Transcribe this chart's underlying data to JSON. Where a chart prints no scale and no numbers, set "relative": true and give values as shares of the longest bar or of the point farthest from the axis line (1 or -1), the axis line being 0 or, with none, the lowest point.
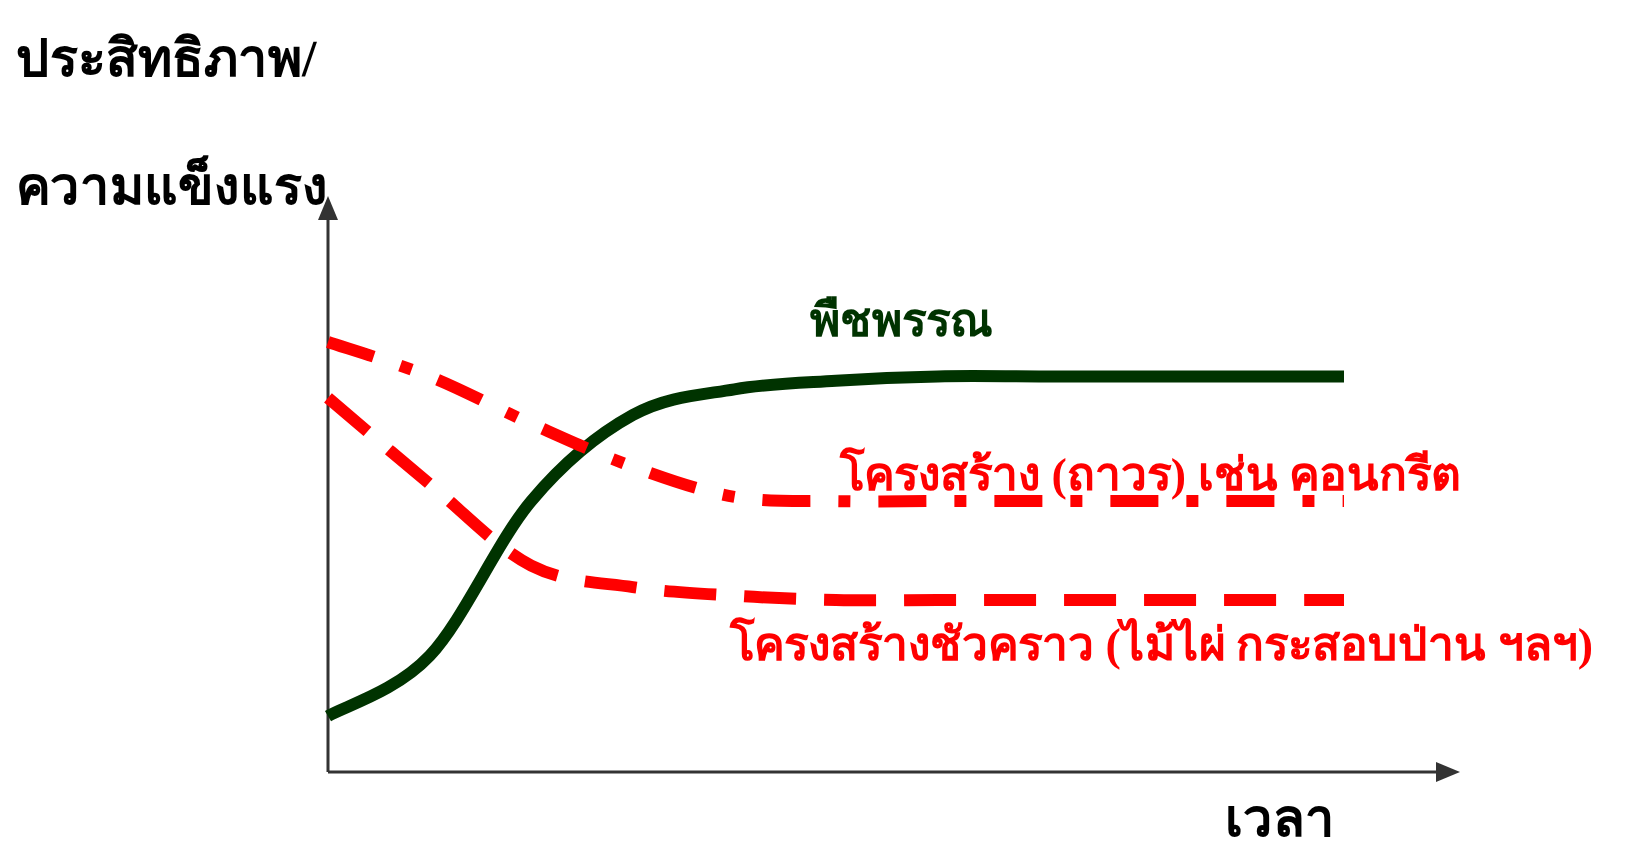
{
  "chart_data": {
    "type": "line",
    "relative": true,
    "xlabel": "เวลา",
    "ylabel": "ประสิทธิภาพ/ความแข็งแรง",
    "marker": "none",
    "categories": [
      null,
      null,
      null,
      null,
      null,
      null,
      null,
      null,
      null,
      null,
      null
    ],
    "series": [
      {
        "name": "พืชพรรณ",
        "color": "#003300",
        "line_style": "solid",
        "values": [
          0.13,
          0.27,
          0.63,
          0.83,
          0.89,
          0.91,
          0.92,
          0.92,
          0.92,
          0.92,
          0.92
        ]
      },
      {
        "name": "โครงสร้าง (ถาวร) เช่น คอนกรีต",
        "color": "#ff0000",
        "line_style": "dashdot",
        "values": [
          1.0,
          0.92,
          0.81,
          0.71,
          0.64,
          0.63,
          0.63,
          0.63,
          0.63,
          0.63,
          0.63
        ]
      },
      {
        "name": "โครงสร้างชัวคราว (ไม้ไผ่ กระสอบป่าน ฯลฯ)",
        "color": "#ff0000",
        "line_style": "dashed",
        "values": [
          0.87,
          0.67,
          0.48,
          0.43,
          0.41,
          0.4,
          0.4,
          0.4,
          0.4,
          0.4,
          0.4
        ]
      }
    ]
  }
}
